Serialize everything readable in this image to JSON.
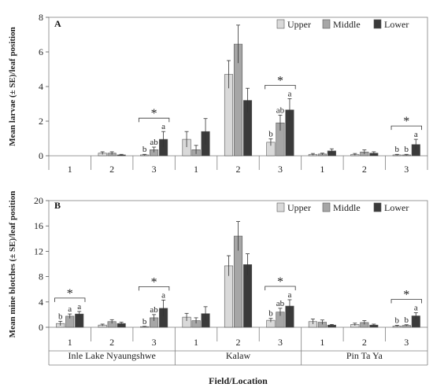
{
  "figure": {
    "xlabel": "Field/Location",
    "groups": [
      "Inle Lake Nyaungshwe",
      "Kalaw",
      "Pin Ta Ya"
    ],
    "fields": [
      "1",
      "2",
      "3",
      "1",
      "2",
      "3",
      "1",
      "2",
      "3"
    ]
  },
  "chart_data": [
    {
      "type": "bar",
      "panel": "A",
      "ylabel": "Mean larvae (± SE)/leaf position",
      "ylim": [
        0,
        8
      ],
      "yticks": [
        0,
        2,
        4,
        6,
        8
      ],
      "legend_position": "top-right",
      "categories": [
        "Inle Lake Nyaungshwe 1",
        "Inle Lake Nyaungshwe 2",
        "Inle Lake Nyaungshwe 3",
        "Kalaw 1",
        "Kalaw 2",
        "Kalaw 3",
        "Pin Ta Ya 1",
        "Pin Ta Ya 2",
        "Pin Ta Ya 3"
      ],
      "series": [
        {
          "name": "Upper",
          "color": "#d9d9d9",
          "values": [
            0,
            0.15,
            0.05,
            0.95,
            4.7,
            0.78,
            0.08,
            0.08,
            0.05
          ],
          "errors": [
            0,
            0.08,
            0.03,
            0.45,
            0.8,
            0.2,
            0.05,
            0.05,
            0.03
          ]
        },
        {
          "name": "Middle",
          "color": "#a6a6a6",
          "values": [
            0,
            0.15,
            0.35,
            0.35,
            6.45,
            1.9,
            0.1,
            0.22,
            0.05
          ],
          "errors": [
            0,
            0.08,
            0.15,
            0.25,
            1.1,
            0.45,
            0.05,
            0.12,
            0.03
          ]
        },
        {
          "name": "Lower",
          "color": "#3a3a3a",
          "values": [
            0,
            0.05,
            0.95,
            1.4,
            3.2,
            2.65,
            0.28,
            0.15,
            0.65
          ],
          "errors": [
            0,
            0.03,
            0.45,
            0.75,
            0.7,
            0.65,
            0.12,
            0.08,
            0.3
          ]
        }
      ],
      "significance": [
        {
          "category_index": 2,
          "letters": [
            "b",
            "ab",
            "a"
          ]
        },
        {
          "category_index": 5,
          "letters": [
            "b",
            "ab",
            "a"
          ]
        },
        {
          "category_index": 8,
          "letters": [
            "b",
            "b",
            "a"
          ]
        }
      ],
      "significance_marker": "*"
    },
    {
      "type": "bar",
      "panel": "B",
      "ylabel": "Mean mine blotches (± SE)/leaf position",
      "ylim": [
        0,
        20
      ],
      "yticks": [
        0,
        4,
        8,
        12,
        16,
        20
      ],
      "legend_position": "top-right",
      "categories": [
        "Inle Lake Nyaungshwe 1",
        "Inle Lake Nyaungshwe 2",
        "Inle Lake Nyaungshwe 3",
        "Kalaw 1",
        "Kalaw 2",
        "Kalaw 3",
        "Pin Ta Ya 1",
        "Pin Ta Ya 2",
        "Pin Ta Ya 3"
      ],
      "series": [
        {
          "name": "Upper",
          "color": "#d9d9d9",
          "values": [
            0.6,
            0.35,
            0.1,
            1.6,
            9.7,
            1.1,
            0.9,
            0.45,
            0.2
          ],
          "errors": [
            0.35,
            0.15,
            0.05,
            0.6,
            1.6,
            0.3,
            0.4,
            0.2,
            0.1
          ]
        },
        {
          "name": "Middle",
          "color": "#a6a6a6",
          "values": [
            1.75,
            0.9,
            1.5,
            1.05,
            14.4,
            2.4,
            0.8,
            0.75,
            0.3
          ],
          "errors": [
            0.35,
            0.3,
            0.5,
            0.45,
            2.3,
            0.6,
            0.35,
            0.3,
            0.1
          ]
        },
        {
          "name": "Lower",
          "color": "#3a3a3a",
          "values": [
            2.1,
            0.6,
            3.0,
            2.15,
            9.9,
            3.35,
            0.35,
            0.35,
            1.8
          ],
          "errors": [
            0.4,
            0.2,
            1.3,
            1.1,
            1.7,
            1.0,
            0.1,
            0.15,
            0.5
          ]
        }
      ],
      "significance": [
        {
          "category_index": 0,
          "letters": [
            "b",
            "a",
            "a"
          ]
        },
        {
          "category_index": 2,
          "letters": [
            "b",
            "ab",
            "a"
          ]
        },
        {
          "category_index": 5,
          "letters": [
            "b",
            "ab",
            "a"
          ]
        },
        {
          "category_index": 8,
          "letters": [
            "b",
            "b",
            "a"
          ]
        }
      ],
      "significance_marker": "*"
    }
  ]
}
